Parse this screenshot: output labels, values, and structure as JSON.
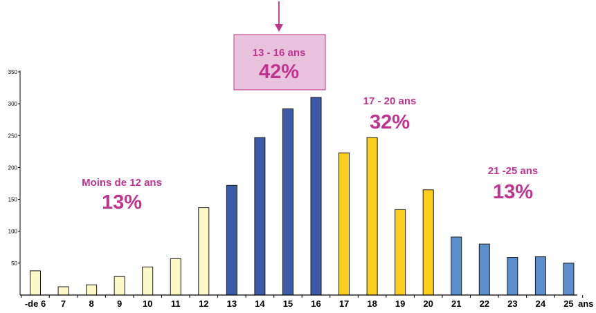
{
  "chart_data": {
    "type": "bar",
    "title": "",
    "xlabel": "",
    "ylabel": "",
    "ylim": [
      0,
      350
    ],
    "yticks": [
      50,
      100,
      150,
      200,
      250,
      300,
      350
    ],
    "grid": false,
    "legend": "none",
    "categories": [
      "-de 6",
      "7",
      "8",
      "9",
      "10",
      "11",
      "12",
      "13",
      "14",
      "15",
      "16",
      "17",
      "18",
      "19",
      "20",
      "21",
      "22",
      "23",
      "24",
      "25"
    ],
    "x_unit_label": "ans",
    "values": [
      38,
      13,
      16,
      29,
      44,
      57,
      137,
      172,
      247,
      292,
      310,
      223,
      247,
      134,
      165,
      91,
      80,
      59,
      60,
      50
    ],
    "bar_colors": [
      "#fdf8c8",
      "#fdf8c8",
      "#fdf8c8",
      "#fdf8c8",
      "#fdf8c8",
      "#fdf8c8",
      "#fdf8c8",
      "#3c5aa8",
      "#3c5aa8",
      "#3c5aa8",
      "#3c5aa8",
      "#fccf1e",
      "#fccf1e",
      "#fccf1e",
      "#fccf1e",
      "#5b8fcc",
      "#5b8fcc",
      "#5b8fcc",
      "#5b8fcc",
      "#5b8fcc"
    ],
    "annotations": [
      {
        "name": "Moins de 12 ans",
        "percent": "13%"
      },
      {
        "name": "13 - 16 ans",
        "percent": "42%",
        "highlighted": true
      },
      {
        "name": "17 - 20 ans",
        "percent": "32%"
      },
      {
        "name": "21 -25 ans",
        "percent": "13%"
      }
    ],
    "colors": {
      "annotation_text": "#c0338f",
      "highlight_fill": "#e9c3dd",
      "highlight_border": "#c0338f",
      "arrow": "#c0338f",
      "bar_stroke": "#1a1a1a"
    }
  }
}
